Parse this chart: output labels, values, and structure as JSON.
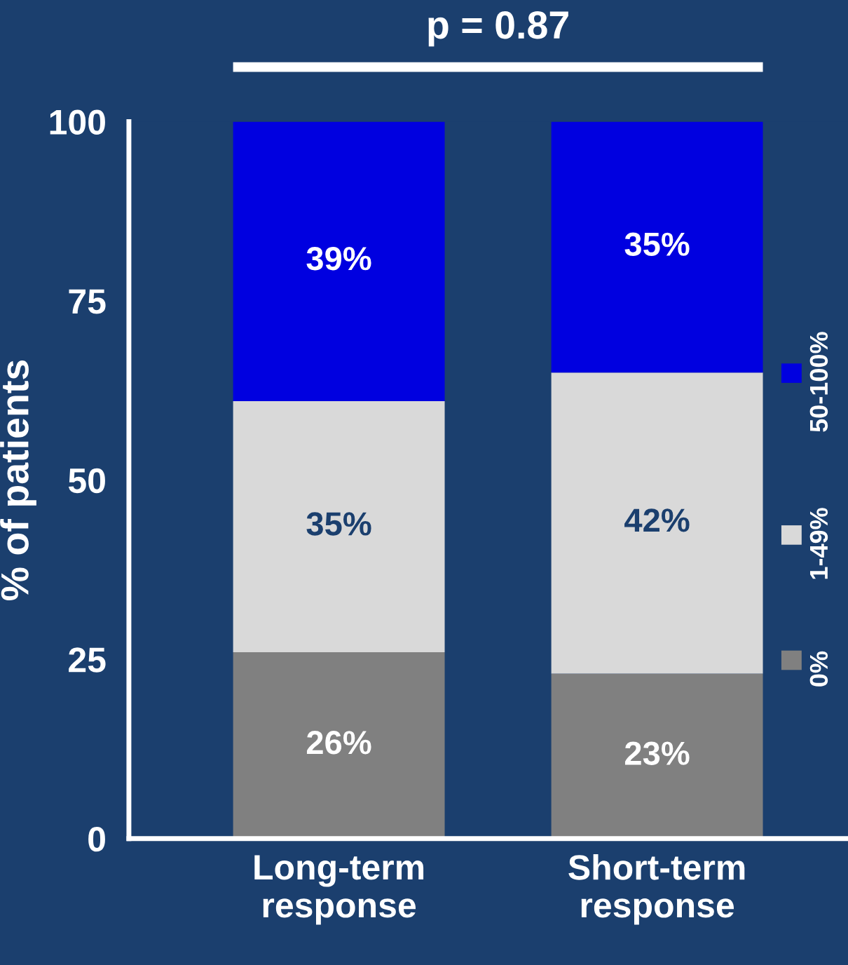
{
  "chart_data": {
    "type": "bar",
    "stacked": true,
    "ylabel": "% of patients",
    "categories": [
      "Long-term\nresponse",
      "Short-term\nresponse"
    ],
    "series": [
      {
        "name": "0%",
        "color": "#808080",
        "values": [
          26,
          23
        ],
        "value_labels": [
          "26%",
          "23%"
        ]
      },
      {
        "name": "1-49%",
        "color": "#d9d9d9",
        "values": [
          35,
          42
        ],
        "value_labels": [
          "35%",
          "42%"
        ]
      },
      {
        "name": "50-100%",
        "color": "#0000e0",
        "values": [
          39,
          35
        ],
        "value_labels": [
          "39%",
          "35%"
        ]
      }
    ],
    "ylim": [
      0,
      100
    ],
    "yticks": [
      0,
      25,
      50,
      75,
      100
    ],
    "annotations": [
      "p = 0.87"
    ],
    "legend": "right",
    "grid": false
  }
}
